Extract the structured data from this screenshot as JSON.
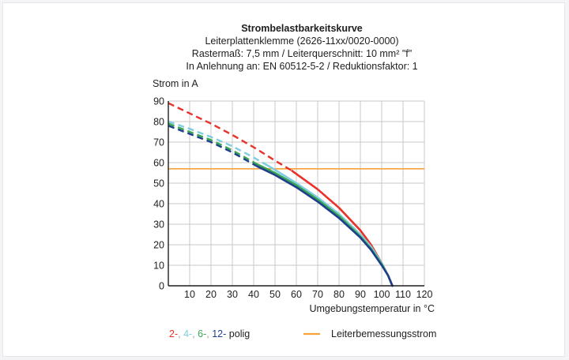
{
  "chart_data": {
    "type": "line",
    "title": "Strombelastbarkeitskurve",
    "subtitle_lines": [
      "Leiterplattenklemme (2626-11xx/0020-0000)",
      "Rastermaß: 7,5 mm / Leiterquerschnitt: 10 mm² \"f\"",
      "In Anlehnung an: EN 60512-5-2 / Reduktionsfaktor: 1"
    ],
    "ylabel": "Strom in A",
    "xlabel": "Umgebungstemperatur in °C",
    "xlim": [
      0,
      120
    ],
    "ylim": [
      0,
      90
    ],
    "x_ticks": [
      10,
      20,
      30,
      40,
      50,
      60,
      70,
      80,
      90,
      100,
      110,
      120
    ],
    "y_ticks": [
      0,
      10,
      20,
      30,
      40,
      50,
      60,
      70,
      80,
      90
    ],
    "grid": true,
    "series": [
      {
        "key": "2",
        "color": "#e8322a",
        "dashed_until_x": 58,
        "x": [
          0,
          10,
          20,
          30,
          40,
          50,
          58,
          70,
          80,
          90,
          95,
          100,
          103,
          105
        ],
        "y": [
          89,
          84,
          79,
          73.5,
          67.5,
          61,
          56,
          47,
          38,
          27,
          20,
          11,
          5,
          0
        ]
      },
      {
        "key": "4",
        "color": "#7fcde0",
        "dashed_until_x": 45,
        "x": [
          0,
          10,
          20,
          30,
          40,
          45,
          50,
          60,
          70,
          80,
          90,
          95,
          100,
          103,
          105
        ],
        "y": [
          80,
          76.5,
          72.5,
          68,
          62.5,
          59.5,
          56.5,
          50,
          43,
          35,
          25,
          19,
          11,
          5,
          0
        ]
      },
      {
        "key": "6",
        "color": "#3aa552",
        "dashed_until_x": 42,
        "x": [
          0,
          10,
          20,
          30,
          42,
          50,
          60,
          70,
          80,
          90,
          95,
          100,
          103,
          105
        ],
        "y": [
          79,
          75,
          71,
          66,
          59,
          55,
          49,
          42,
          34,
          24,
          18,
          10.5,
          5,
          0
        ]
      },
      {
        "key": "12",
        "color": "#1f3f8c",
        "dashed_until_x": 42,
        "x": [
          0,
          10,
          20,
          30,
          42,
          50,
          60,
          70,
          80,
          90,
          95,
          100,
          103,
          105
        ],
        "y": [
          78,
          74,
          70,
          65,
          58,
          54,
          48,
          41,
          33,
          23.5,
          17.5,
          10,
          5,
          0
        ]
      }
    ],
    "reference_line": {
      "y": 57,
      "color": "#f7a33a"
    },
    "legend": {
      "placement": "bottom",
      "poles": {
        "parts": [
          {
            "text": "2-",
            "color": "#e8322a"
          },
          {
            "text": ", ",
            "color": "#9a9a9a"
          },
          {
            "text": "4-",
            "color": "#7fcde0"
          },
          {
            "text": ", ",
            "color": "#9a9a9a"
          },
          {
            "text": "6-",
            "color": "#3aa552"
          },
          {
            "text": ", ",
            "color": "#9a9a9a"
          },
          {
            "text": "12-",
            "color": "#1f3f8c"
          },
          {
            "text": " polig",
            "color": "#1e1e1e"
          }
        ]
      },
      "rated_current_label": "Leiterbemessungsstrom"
    }
  }
}
